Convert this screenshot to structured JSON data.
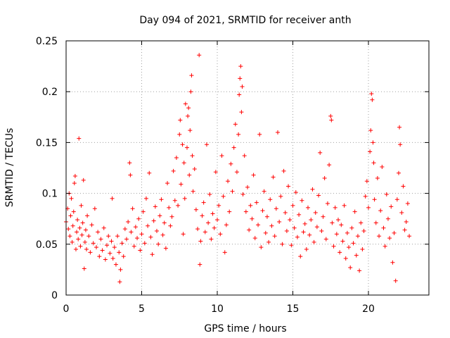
{
  "chart_data": {
    "type": "scatter",
    "title": "Day 094 of 2021, SRMTID for receiver anth",
    "xlabel": "GPS time / hours",
    "ylabel": "SRMTID / TECUs",
    "xlim": [
      0,
      24
    ],
    "ylim": [
      0,
      0.25
    ],
    "x_ticks": [
      0,
      5,
      10,
      15,
      20
    ],
    "x_tick_labels": [
      "0",
      "5",
      "10",
      "15",
      "20"
    ],
    "y_ticks": [
      0,
      0.05,
      0.1,
      0.15,
      0.2,
      0.25
    ],
    "y_tick_labels": [
      "0",
      "0.05",
      "0.1",
      "0.15",
      "0.2",
      "0.25"
    ],
    "grid": true,
    "marker": "plus",
    "series": [
      {
        "name": "SRMTID",
        "color": "#ff0000",
        "points": [
          [
            0.0,
            0.072
          ],
          [
            0.1,
            0.085
          ],
          [
            0.15,
            0.065
          ],
          [
            0.2,
            0.1
          ],
          [
            0.25,
            0.058
          ],
          [
            0.3,
            0.078
          ],
          [
            0.35,
            0.095
          ],
          [
            0.4,
            0.052
          ],
          [
            0.45,
            0.068
          ],
          [
            0.5,
            0.082
          ],
          [
            0.55,
            0.11
          ],
          [
            0.6,
            0.117
          ],
          [
            0.65,
            0.045
          ],
          [
            0.7,
            0.062
          ],
          [
            0.75,
            0.074
          ],
          [
            0.8,
            0.055
          ],
          [
            0.85,
            0.154
          ],
          [
            0.9,
            0.066
          ],
          [
            0.95,
            0.048
          ],
          [
            1.0,
            0.088
          ],
          [
            1.05,
            0.059
          ],
          [
            1.1,
            0.071
          ],
          [
            1.15,
            0.113
          ],
          [
            1.2,
            0.026
          ],
          [
            1.25,
            0.052
          ],
          [
            1.3,
            0.064
          ],
          [
            1.35,
            0.045
          ],
          [
            1.4,
            0.078
          ],
          [
            1.5,
            0.058
          ],
          [
            1.6,
            0.042
          ],
          [
            1.7,
            0.069
          ],
          [
            1.8,
            0.051
          ],
          [
            1.9,
            0.085
          ],
          [
            2.0,
            0.047
          ],
          [
            2.1,
            0.062
          ],
          [
            2.2,
            0.038
          ],
          [
            2.3,
            0.055
          ],
          [
            2.4,
            0.044
          ],
          [
            2.5,
            0.066
          ],
          [
            2.6,
            0.035
          ],
          [
            2.7,
            0.049
          ],
          [
            2.8,
            0.058
          ],
          [
            2.9,
            0.041
          ],
          [
            3.0,
            0.053
          ],
          [
            3.05,
            0.095
          ],
          [
            3.1,
            0.036
          ],
          [
            3.2,
            0.047
          ],
          [
            3.3,
            0.03
          ],
          [
            3.4,
            0.058
          ],
          [
            3.5,
            0.042
          ],
          [
            3.55,
            0.013
          ],
          [
            3.6,
            0.025
          ],
          [
            3.7,
            0.051
          ],
          [
            3.8,
            0.038
          ],
          [
            3.9,
            0.065
          ],
          [
            4.0,
            0.055
          ],
          [
            4.1,
            0.072
          ],
          [
            4.2,
            0.13
          ],
          [
            4.25,
            0.118
          ],
          [
            4.3,
            0.062
          ],
          [
            4.4,
            0.085
          ],
          [
            4.5,
            0.048
          ],
          [
            4.6,
            0.067
          ],
          [
            4.7,
            0.056
          ],
          [
            4.8,
            0.075
          ],
          [
            4.9,
            0.044
          ],
          [
            5.0,
            0.06
          ],
          [
            5.1,
            0.082
          ],
          [
            5.2,
            0.051
          ],
          [
            5.3,
            0.095
          ],
          [
            5.4,
            0.068
          ],
          [
            5.5,
            0.12
          ],
          [
            5.6,
            0.057
          ],
          [
            5.7,
            0.04
          ],
          [
            5.8,
            0.073
          ],
          [
            5.9,
            0.087
          ],
          [
            6.0,
            0.063
          ],
          [
            6.1,
            0.05
          ],
          [
            6.2,
            0.078
          ],
          [
            6.3,
            0.094
          ],
          [
            6.4,
            0.059
          ],
          [
            6.5,
            0.071
          ],
          [
            6.6,
            0.046
          ],
          [
            6.7,
            0.11
          ],
          [
            6.8,
            0.086
          ],
          [
            6.9,
            0.068
          ],
          [
            7.0,
            0.077
          ],
          [
            7.1,
            0.122
          ],
          [
            7.2,
            0.093
          ],
          [
            7.3,
            0.135
          ],
          [
            7.4,
            0.088
          ],
          [
            7.5,
            0.158
          ],
          [
            7.55,
            0.172
          ],
          [
            7.6,
            0.109
          ],
          [
            7.7,
            0.148
          ],
          [
            7.75,
            0.06
          ],
          [
            7.8,
            0.13
          ],
          [
            7.85,
            0.095
          ],
          [
            7.9,
            0.188
          ],
          [
            8.0,
            0.145
          ],
          [
            8.05,
            0.176
          ],
          [
            8.1,
            0.184
          ],
          [
            8.15,
            0.118
          ],
          [
            8.2,
            0.162
          ],
          [
            8.25,
            0.2
          ],
          [
            8.3,
            0.216
          ],
          [
            8.35,
            0.137
          ],
          [
            8.4,
            0.102
          ],
          [
            8.5,
            0.124
          ],
          [
            8.6,
            0.084
          ],
          [
            8.7,
            0.065
          ],
          [
            8.8,
            0.236
          ],
          [
            8.85,
            0.03
          ],
          [
            8.9,
            0.053
          ],
          [
            9.0,
            0.078
          ],
          [
            9.1,
            0.091
          ],
          [
            9.2,
            0.062
          ],
          [
            9.3,
            0.148
          ],
          [
            9.4,
            0.071
          ],
          [
            9.5,
            0.099
          ],
          [
            9.6,
            0.055
          ],
          [
            9.7,
            0.08
          ],
          [
            9.8,
            0.066
          ],
          [
            9.9,
            0.121
          ],
          [
            10.0,
            0.074
          ],
          [
            10.1,
            0.088
          ],
          [
            10.2,
            0.06
          ],
          [
            10.3,
            0.137
          ],
          [
            10.4,
            0.097
          ],
          [
            10.5,
            0.042
          ],
          [
            10.6,
            0.069
          ],
          [
            10.7,
            0.112
          ],
          [
            10.8,
            0.082
          ],
          [
            10.9,
            0.129
          ],
          [
            11.0,
            0.102
          ],
          [
            11.1,
            0.145
          ],
          [
            11.2,
            0.168
          ],
          [
            11.3,
            0.121
          ],
          [
            11.4,
            0.158
          ],
          [
            11.45,
            0.197
          ],
          [
            11.5,
            0.213
          ],
          [
            11.55,
            0.225
          ],
          [
            11.6,
            0.18
          ],
          [
            11.65,
            0.205
          ],
          [
            11.7,
            0.099
          ],
          [
            11.8,
            0.137
          ],
          [
            11.9,
            0.082
          ],
          [
            12.0,
            0.106
          ],
          [
            12.1,
            0.064
          ],
          [
            12.2,
            0.088
          ],
          [
            12.3,
            0.075
          ],
          [
            12.4,
            0.118
          ],
          [
            12.5,
            0.056
          ],
          [
            12.6,
            0.091
          ],
          [
            12.7,
            0.069
          ],
          [
            12.8,
            0.158
          ],
          [
            12.9,
            0.047
          ],
          [
            13.0,
            0.083
          ],
          [
            13.1,
            0.102
          ],
          [
            13.2,
            0.061
          ],
          [
            13.3,
            0.077
          ],
          [
            13.4,
            0.052
          ],
          [
            13.5,
            0.094
          ],
          [
            13.6,
            0.068
          ],
          [
            13.7,
            0.116
          ],
          [
            13.8,
            0.058
          ],
          [
            13.9,
            0.085
          ],
          [
            14.0,
            0.16
          ],
          [
            14.1,
            0.072
          ],
          [
            14.2,
            0.097
          ],
          [
            14.3,
            0.05
          ],
          [
            14.4,
            0.122
          ],
          [
            14.5,
            0.081
          ],
          [
            14.6,
            0.063
          ],
          [
            14.7,
            0.107
          ],
          [
            14.8,
            0.074
          ],
          [
            14.9,
            0.049
          ],
          [
            15.0,
            0.088
          ],
          [
            15.1,
            0.066
          ],
          [
            15.2,
            0.101
          ],
          [
            15.3,
            0.057
          ],
          [
            15.4,
            0.079
          ],
          [
            15.5,
            0.038
          ],
          [
            15.6,
            0.093
          ],
          [
            15.7,
            0.062
          ],
          [
            15.8,
            0.07
          ],
          [
            15.9,
            0.045
          ],
          [
            16.0,
            0.086
          ],
          [
            16.1,
            0.059
          ],
          [
            16.2,
            0.074
          ],
          [
            16.3,
            0.104
          ],
          [
            16.4,
            0.052
          ],
          [
            16.5,
            0.081
          ],
          [
            16.6,
            0.067
          ],
          [
            16.7,
            0.098
          ],
          [
            16.8,
            0.14
          ],
          [
            16.9,
            0.063
          ],
          [
            17.0,
            0.077
          ],
          [
            17.1,
            0.115
          ],
          [
            17.2,
            0.055
          ],
          [
            17.3,
            0.09
          ],
          [
            17.4,
            0.128
          ],
          [
            17.5,
            0.176
          ],
          [
            17.55,
            0.172
          ],
          [
            17.6,
            0.071
          ],
          [
            17.7,
            0.048
          ],
          [
            17.8,
            0.086
          ],
          [
            17.9,
            0.06
          ],
          [
            18.0,
            0.074
          ],
          [
            18.1,
            0.042
          ],
          [
            18.2,
            0.069
          ],
          [
            18.3,
            0.053
          ],
          [
            18.4,
            0.088
          ],
          [
            18.5,
            0.036
          ],
          [
            18.6,
            0.061
          ],
          [
            18.7,
            0.047
          ],
          [
            18.8,
            0.027
          ],
          [
            18.9,
            0.066
          ],
          [
            19.0,
            0.051
          ],
          [
            19.1,
            0.082
          ],
          [
            19.2,
            0.039
          ],
          [
            19.3,
            0.058
          ],
          [
            19.4,
            0.024
          ],
          [
            19.5,
            0.071
          ],
          [
            19.6,
            0.045
          ],
          [
            19.7,
            0.063
          ],
          [
            19.8,
            0.097
          ],
          [
            19.9,
            0.112
          ],
          [
            20.0,
            0.086
          ],
          [
            20.1,
            0.141
          ],
          [
            20.15,
            0.162
          ],
          [
            20.2,
            0.198
          ],
          [
            20.25,
            0.192
          ],
          [
            20.3,
            0.15
          ],
          [
            20.35,
            0.13
          ],
          [
            20.4,
            0.094
          ],
          [
            20.5,
            0.071
          ],
          [
            20.6,
            0.115
          ],
          [
            20.7,
            0.058
          ],
          [
            20.8,
            0.083
          ],
          [
            20.9,
            0.126
          ],
          [
            21.0,
            0.066
          ],
          [
            21.1,
            0.048
          ],
          [
            21.2,
            0.099
          ],
          [
            21.3,
            0.075
          ],
          [
            21.4,
            0.056
          ],
          [
            21.5,
            0.087
          ],
          [
            21.6,
            0.032
          ],
          [
            21.7,
            0.061
          ],
          [
            21.8,
            0.014
          ],
          [
            21.9,
            0.094
          ],
          [
            22.0,
            0.12
          ],
          [
            22.05,
            0.165
          ],
          [
            22.1,
            0.148
          ],
          [
            22.2,
            0.081
          ],
          [
            22.3,
            0.107
          ],
          [
            22.4,
            0.064
          ],
          [
            22.5,
            0.072
          ],
          [
            22.6,
            0.09
          ],
          [
            22.7,
            0.058
          ]
        ]
      }
    ]
  }
}
